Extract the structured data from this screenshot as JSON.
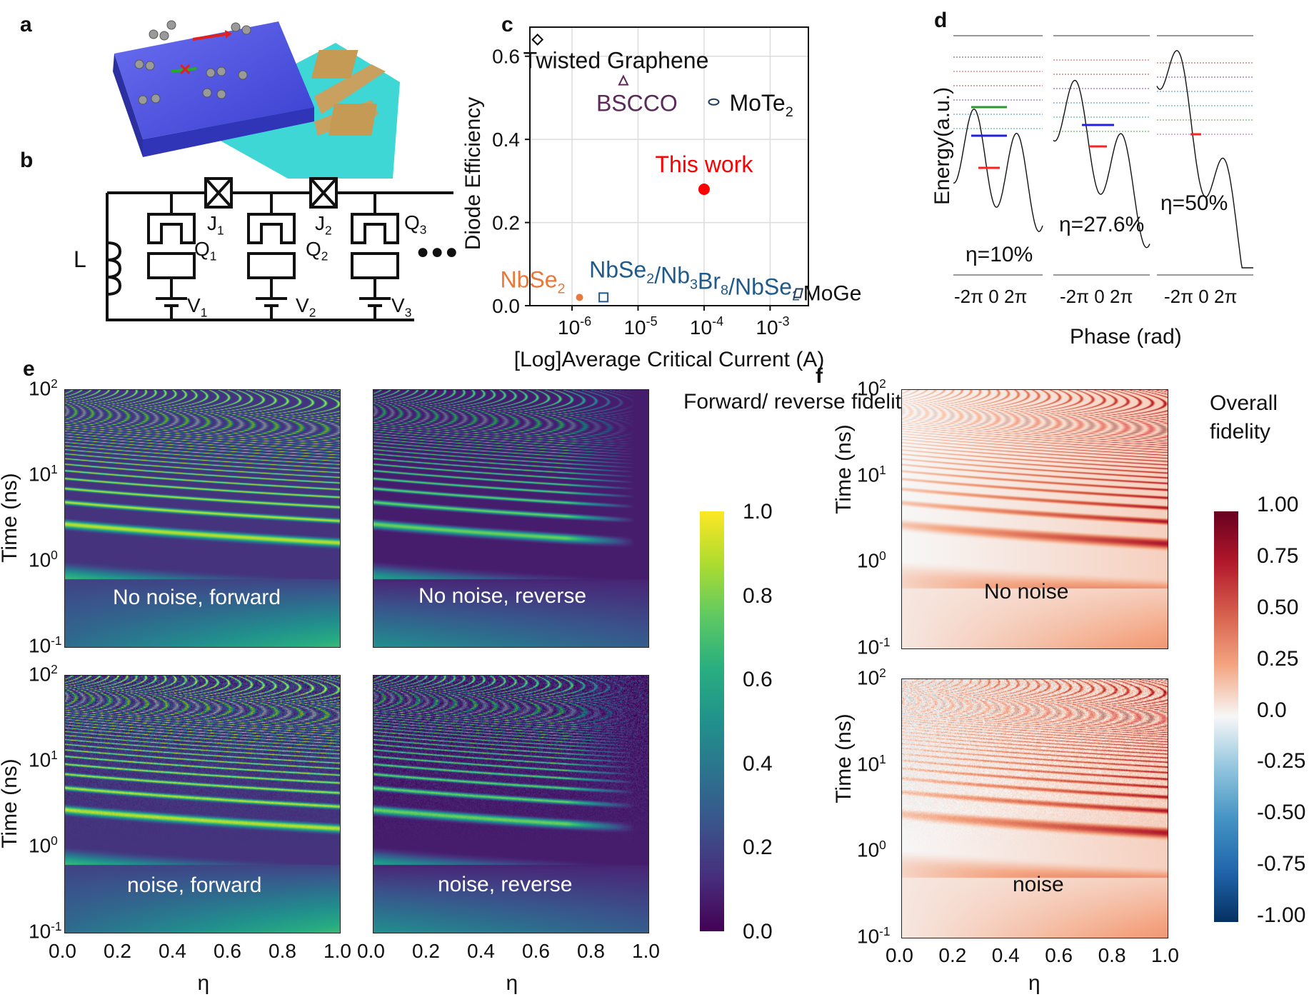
{
  "panels": {
    "a": "a",
    "b": "b",
    "c": "c",
    "d": "d",
    "e": "e",
    "f": "f"
  },
  "circuit": {
    "L": "L",
    "J1": "J",
    "J1_sub": "1",
    "J2": "J",
    "J2_sub": "2",
    "Q1": "Q",
    "Q1_sub": "1",
    "Q2": "Q",
    "Q2_sub": "2",
    "Q3": "Q",
    "Q3_sub": "3",
    "V1": "V",
    "V1_sub": "1",
    "V2": "V",
    "V2_sub": "2",
    "V3": "V",
    "V3_sub": "3",
    "ellipsis": "●●●"
  },
  "chart_data": [
    {
      "panel": "c",
      "type": "scatter",
      "xlabel": "[Log]Average Critical Current (A)",
      "ylabel": "Diode Efficiency",
      "x_scale": "log",
      "xlim": [
        2.3e-07,
        0.0038
      ],
      "ylim": [
        0.0,
        0.67
      ],
      "xticks": [
        "10-6",
        "10-5",
        "10-4",
        "10-3"
      ],
      "yticks": [
        "0.0",
        "0.2",
        "0.4",
        "0.6"
      ],
      "grid": true,
      "points": [
        {
          "label": "Twisted Graphene",
          "x": 3e-07,
          "y": 0.64,
          "marker": "diamond",
          "color": "#000000"
        },
        {
          "label": "BSCCO",
          "x": 6e-06,
          "y": 0.54,
          "marker": "triangle",
          "color": "#5a2a5a"
        },
        {
          "label": "MoTe2",
          "x": 0.00014,
          "y": 0.49,
          "marker": "ellipse",
          "color": "#1e3a5a"
        },
        {
          "label": "This work",
          "x": 0.0001,
          "y": 0.28,
          "marker": "circle",
          "color": "#ff0000"
        },
        {
          "label": "NbSe2",
          "x": 1.3e-06,
          "y": 0.02,
          "marker": "dot",
          "color": "#e8793a"
        },
        {
          "label": "NbSe2/Nb3Br8/NbSe2",
          "x": 3e-06,
          "y": 0.02,
          "marker": "square",
          "color": "#1f5a8a"
        },
        {
          "label": "MoGe",
          "x": 0.0026,
          "y": 0.03,
          "marker": "parallelogram",
          "color": "#1f3a5a"
        }
      ]
    },
    {
      "panel": "d",
      "type": "line",
      "ylabel": "Energy(a.u.)",
      "xlabel": "Phase (rad)",
      "subplots": [
        {
          "eta_label": "η=10%",
          "xticks": [
            "-2π",
            "0",
            "2π"
          ]
        },
        {
          "eta_label": "η=27.6%",
          "xticks": [
            "-2π",
            "0",
            "2π"
          ]
        },
        {
          "eta_label": "η=50%",
          "xticks": [
            "-2π",
            "0",
            "2π"
          ]
        }
      ]
    },
    {
      "panel": "e",
      "type": "heatmap",
      "xlabel": "η",
      "ylabel": "Time (ns)",
      "xticks": [
        "0.0",
        "0.2",
        "0.4",
        "0.6",
        "0.8",
        "1.0"
      ],
      "yticks": [
        "10",
        "10",
        "10",
        "10"
      ],
      "ytick_exp": [
        "2",
        "1",
        "0",
        "-1"
      ],
      "colorbar_label": "Forward/ reverse fidelity",
      "colorbar_ticks": [
        "1.0",
        "0.8",
        "0.6",
        "0.4",
        "0.2",
        "0.0"
      ],
      "colorbar_range": [
        0.0,
        1.0
      ],
      "maps": [
        "No noise, forward",
        "No noise, reverse",
        "noise, forward",
        "noise, reverse"
      ]
    },
    {
      "panel": "f",
      "type": "heatmap",
      "xlabel": "η",
      "ylabel": "Time (ns)",
      "xticks": [
        "0.0",
        "0.2",
        "0.4",
        "0.6",
        "0.8",
        "1.0"
      ],
      "yticks": [
        "10",
        "10",
        "10",
        "10"
      ],
      "ytick_exp": [
        "2",
        "1",
        "0",
        "-1"
      ],
      "colorbar_label": "Overall fidelity",
      "colorbar_ticks": [
        "1.00",
        "0.75",
        "0.50",
        "0.25",
        "0.0",
        "-0.25",
        "-0.50",
        "-0.75",
        "-1.00"
      ],
      "colorbar_range": [
        -1.0,
        1.0
      ],
      "maps": [
        "No noise",
        "noise"
      ]
    }
  ],
  "colors": {
    "viridis_low": "#440154",
    "viridis_mid": "#21918c",
    "viridis_high": "#fde725",
    "rdbu_low": "#053061",
    "rdbu_mid": "#f7f7f7",
    "rdbu_high": "#67001f"
  }
}
